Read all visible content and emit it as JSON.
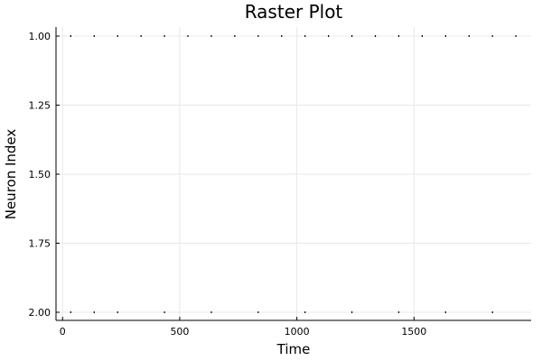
{
  "chart_data": {
    "type": "scatter",
    "title": "Raster Plot",
    "xlabel": "Time",
    "ylabel": "Neuron Index",
    "xlim": [
      -28,
      2000
    ],
    "ylim": [
      1.0,
      2.0
    ],
    "y_inverted": true,
    "xticks": [
      0,
      500,
      1000,
      1500
    ],
    "yticks": [
      1.0,
      1.25,
      1.5,
      1.75,
      2.0
    ],
    "xtick_labels": [
      "0",
      "500",
      "1000",
      "1500"
    ],
    "ytick_labels": [
      "1.00",
      "1.25",
      "1.50",
      "1.75",
      "2.00"
    ],
    "grid": true,
    "legend": "none",
    "marker_color": "#000000",
    "series": [
      {
        "neuron": 1,
        "times": [
          35,
          135,
          235,
          335,
          435,
          535,
          635,
          735,
          835,
          935,
          1035,
          1135,
          1235,
          1335,
          1435,
          1535,
          1635,
          1735,
          1835,
          1935
        ]
      },
      {
        "neuron": 2,
        "times": [
          35,
          135,
          235,
          435,
          635,
          835,
          1035,
          1235,
          1435,
          1635,
          1835
        ]
      }
    ]
  }
}
